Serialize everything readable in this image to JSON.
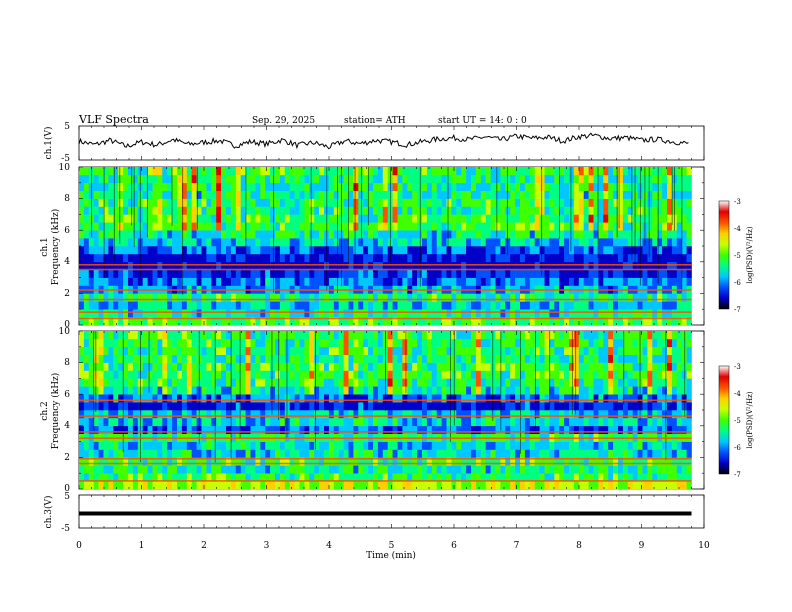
{
  "header": {
    "title": "VLF  Spectra",
    "date": "Sep. 29, 2025",
    "station": "station= ATH",
    "start": "start  UT  =    14: 0   : 0"
  },
  "chart_data": [
    {
      "type": "line",
      "name": "ch1-waveform",
      "ylabel": "ch.1(V)",
      "ylim": [
        -5,
        5
      ],
      "ytick_labels": [
        "5",
        "-5"
      ],
      "xlim": [
        0,
        10
      ],
      "x": [
        0,
        0.25,
        0.5,
        0.75,
        1,
        1.25,
        1.5,
        1.75,
        2,
        2.25,
        2.5,
        2.75,
        3,
        3.25,
        3.5,
        3.75,
        4,
        4.25,
        4.5,
        4.75,
        5,
        5.25,
        5.5,
        5.75,
        6,
        6.25,
        6.5,
        6.75,
        7,
        7.25,
        7.5,
        7.75,
        8,
        8.25,
        8.5,
        8.75,
        9,
        9.25,
        9.5,
        9.75
      ],
      "y": [
        0.5,
        -0.5,
        0.8,
        -1,
        0.3,
        -0.6,
        1,
        -0.4,
        0.2,
        0.7,
        -0.8,
        0.4,
        -0.3,
        0.9,
        -0.7,
        0.1,
        -1.2,
        0.6,
        -0.2,
        0.8,
        0.3,
        -0.5,
        0.4,
        1.2,
        1.5,
        1,
        1.8,
        0.9,
        2,
        1.4,
        1.7,
        0.6,
        1.9,
        2.2,
        1.3,
        1.6,
        0.8,
        1.1,
        0.4,
        -0.2
      ]
    },
    {
      "type": "heatmap",
      "name": "ch1-spectrogram",
      "ylabel": "ch.1",
      "ylabel2": "Frequency  (kHz)",
      "ylim": [
        0,
        10
      ],
      "ytick_labels": [
        "0",
        "2",
        "4",
        "6",
        "8",
        "10"
      ],
      "xlim": [
        0,
        9.8
      ],
      "freq_kHz": [
        0.5,
        1,
        1.5,
        2,
        2.5,
        3,
        3.5,
        4,
        4.5,
        5,
        5.5,
        6,
        6.5,
        7,
        7.5,
        8,
        8.5,
        9,
        9.5,
        10
      ],
      "mean_log_psd": [
        -4.8,
        -5.3,
        -5.6,
        -5.1,
        -5.7,
        -5.9,
        -6.2,
        -6.6,
        -6.4,
        -6,
        -5.6,
        -5.3,
        -5,
        -5,
        -5.1,
        -5.1,
        -5.3,
        -5.2,
        -5.2,
        -5
      ],
      "bright_lines_kHz": [
        0.4,
        0.8,
        1.6,
        2.2,
        3.5,
        3.8
      ]
    },
    {
      "type": "heatmap",
      "name": "ch2-spectrogram",
      "ylabel": "ch.2",
      "ylabel2": "Frequency  (kHz)",
      "ylim": [
        0,
        10
      ],
      "ytick_labels": [
        "0",
        "2",
        "4",
        "6",
        "8",
        "10"
      ],
      "xlim": [
        0,
        9.8
      ],
      "freq_kHz": [
        0.5,
        1,
        1.5,
        2,
        2.5,
        3,
        3.5,
        4,
        4.5,
        5,
        5.5,
        6,
        6.5,
        7,
        7.5,
        8,
        8.5,
        9,
        9.5,
        10
      ],
      "mean_log_psd": [
        -4.4,
        -5,
        -5.3,
        -5,
        -5.4,
        -5.5,
        -5.1,
        -6,
        -5.5,
        -5.6,
        -6.3,
        -5.9,
        -5.4,
        -5.1,
        -5,
        -5,
        -5.2,
        -5.1,
        -5.1,
        -5
      ],
      "bright_lines_kHz": [
        0.5,
        1.6,
        1.9,
        3.2,
        3.6,
        4.6,
        5.6
      ]
    },
    {
      "type": "line",
      "name": "ch3-waveform",
      "ylabel": "ch.3(V)",
      "ylim": [
        -5,
        5
      ],
      "ytick_labels": [
        "5",
        "-5"
      ],
      "xlim": [
        0,
        10
      ],
      "x": [
        0,
        9.8
      ],
      "y": [
        -0.6,
        -0.6
      ]
    }
  ],
  "xaxis": {
    "label": "Time  (min)",
    "ticks": [
      "0",
      "1",
      "2",
      "3",
      "4",
      "5",
      "6",
      "7",
      "8",
      "9",
      "10"
    ]
  },
  "colorbar": {
    "label": "log(PSD)(V²/Hz)",
    "range": [
      -7,
      -3
    ],
    "tick_labels": [
      "-3",
      "-4",
      "-5",
      "-6",
      "-7"
    ],
    "colors": [
      "#000000",
      "#0000c8",
      "#0050ff",
      "#00c8ff",
      "#00ff80",
      "#40ff00",
      "#c8ff00",
      "#ffd000",
      "#ff5000",
      "#e00000",
      "#ffffff"
    ]
  }
}
